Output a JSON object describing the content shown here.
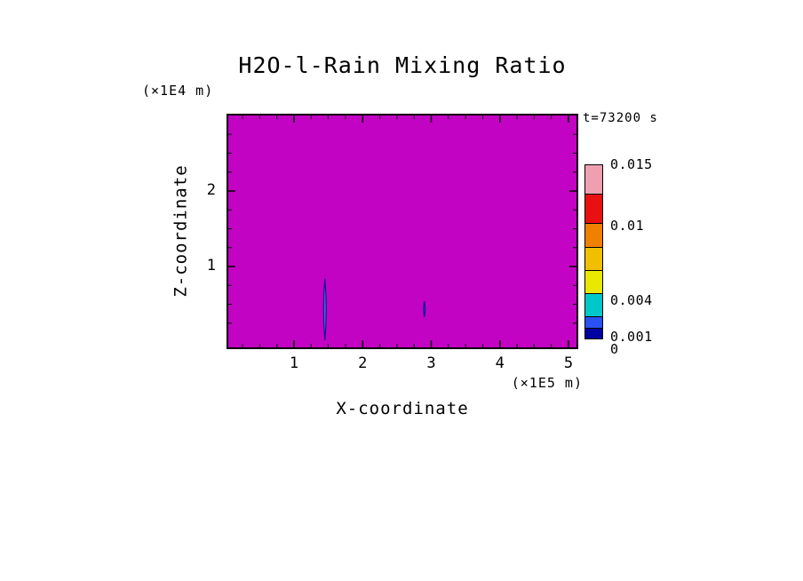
{
  "window": {
    "background_color": "#ffffff"
  },
  "chart_data": {
    "type": "heatmap",
    "title": "H2O-l-Rain Mixing Ratio",
    "timestamp_label": "t=73200 s",
    "x_axis": {
      "label": "X-coordinate",
      "unit_label": "(×1E5 m)",
      "min": 0,
      "max": 5.12,
      "ticks": [
        1,
        2,
        3,
        4,
        5
      ],
      "tick_labels": [
        "1",
        "2",
        "3",
        "4",
        "5"
      ],
      "minor_tick_step": 0.25
    },
    "y_axis": {
      "label": "Z-coordinate",
      "unit_label": "(×1E4 m)",
      "min": 0,
      "max": 3.0,
      "ticks": [
        1,
        2
      ],
      "tick_labels": [
        "1",
        "2"
      ],
      "minor_tick_step": 0.25
    },
    "field": {
      "description": "Rain mixing ratio field, nearly uniform at top color level (magenta) with two small low-value rain shafts",
      "dominant_color": "#C303C3"
    },
    "features": [
      {
        "name": "contour-feature-1",
        "x": 1.45,
        "z_bottom": 0.02,
        "z_top": 0.84,
        "x_halfwidth": 0.04,
        "fill": "#4466E0",
        "stroke": "#151599"
      },
      {
        "name": "contour-feature-2",
        "x": 2.9,
        "z_bottom": 0.33,
        "z_top": 0.54,
        "x_halfwidth": 0.024,
        "fill": "#3344C0",
        "stroke": "#151599"
      }
    ],
    "colorbar": {
      "levels": [
        0,
        0.001,
        0.002,
        0.004,
        0.006,
        0.008,
        0.01,
        0.0125,
        0.015
      ],
      "colors": [
        "#0000A0",
        "#2A52F0",
        "#00C8C8",
        "#E8E800",
        "#F0C000",
        "#F08000",
        "#E81010",
        "#EFA0B0"
      ],
      "tick_labels": [
        {
          "value": 0.015,
          "label": "0.015"
        },
        {
          "value": 0.01,
          "label": "0.01"
        },
        {
          "value": 0.004,
          "label": "0.004"
        },
        {
          "value": 0.001,
          "label": "0.001"
        },
        {
          "value": 0,
          "label": "0"
        }
      ]
    }
  }
}
